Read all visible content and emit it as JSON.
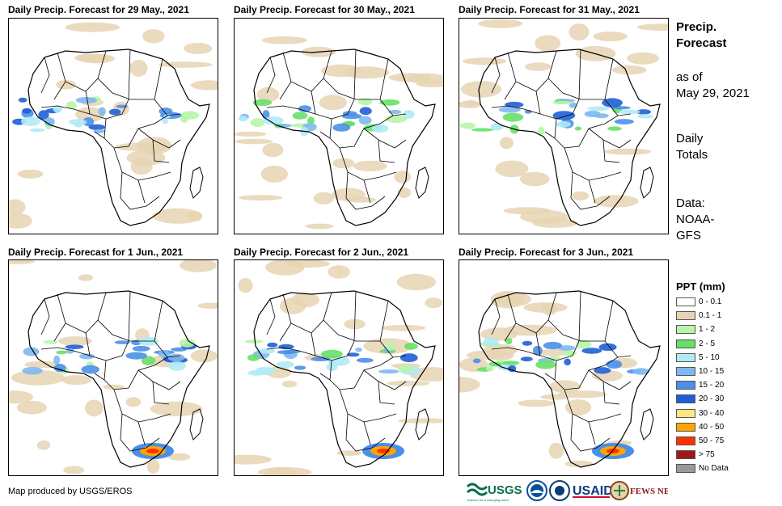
{
  "panels": [
    {
      "title": "Daily Precip. Forecast for 29 May., 2021",
      "map_icon": "africa-precip-map"
    },
    {
      "title": "Daily Precip. Forecast for 30 May., 2021",
      "map_icon": "africa-precip-map"
    },
    {
      "title": "Daily Precip. Forecast for 31 May., 2021",
      "map_icon": "africa-precip-map"
    },
    {
      "title": "Daily Precip. Forecast for 1 Jun., 2021",
      "map_icon": "africa-precip-map"
    },
    {
      "title": "Daily Precip. Forecast for 2 Jun., 2021",
      "map_icon": "africa-precip-map"
    },
    {
      "title": "Daily Precip. Forecast for 3 Jun., 2021",
      "map_icon": "africa-precip-map"
    }
  ],
  "sidebar": {
    "heading_line1": "Precip.",
    "heading_line2": "Forecast",
    "asof_line1": "as of",
    "asof_line2": "May 29, 2021",
    "totals_line1": "Daily",
    "totals_line2": "Totals",
    "data_line1": "Data:",
    "data_line2": "NOAA-",
    "data_line3": "GFS"
  },
  "legend": {
    "title": "PPT (mm)",
    "items": [
      {
        "label": "0 - 0.1",
        "color": "#ffffff"
      },
      {
        "label": "0.1 - 1",
        "color": "#e6d3b3"
      },
      {
        "label": "1 - 2",
        "color": "#b8f5a8"
      },
      {
        "label": "2 - 5",
        "color": "#66e066"
      },
      {
        "label": "5 - 10",
        "color": "#b0eaf5"
      },
      {
        "label": "10 - 15",
        "color": "#7fb8f0"
      },
      {
        "label": "15 - 20",
        "color": "#4a8fe8"
      },
      {
        "label": "20 - 30",
        "color": "#1f5fd6"
      },
      {
        "label": "30 - 40",
        "color": "#ffe680"
      },
      {
        "label": "40 - 50",
        "color": "#ffa500"
      },
      {
        "label": "50 - 75",
        "color": "#ff3300"
      },
      {
        "label": "> 75",
        "color": "#a01818"
      },
      {
        "label": "No Data",
        "color": "#999999"
      }
    ]
  },
  "footer": {
    "credit": "Map produced by USGS/EROS",
    "logos": [
      "USGS",
      "NOAA",
      "USAID",
      "FEWS NET"
    ]
  }
}
